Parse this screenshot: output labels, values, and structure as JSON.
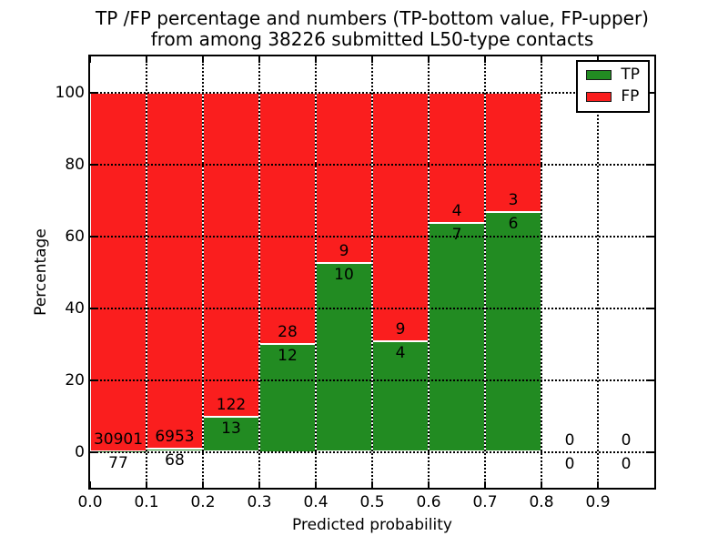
{
  "chart_data": {
    "type": "bar",
    "stacked": true,
    "normalized": "percent",
    "title_line1": "TP /FP percentage and numbers (TP-bottom value, FP-upper)",
    "title_line2": "from among 38226 submitted L50-type contacts",
    "total_submitted": 38226,
    "xlabel": "Predicted probability",
    "ylabel": "Percentage",
    "xlim": [
      0.0,
      1.0
    ],
    "ylim": [
      -10,
      110
    ],
    "xticks": [
      "0.0",
      "0.1",
      "0.2",
      "0.3",
      "0.4",
      "0.5",
      "0.6",
      "0.7",
      "0.8",
      "0.9"
    ],
    "xtick_values": [
      0.0,
      0.1,
      0.2,
      0.3,
      0.4,
      0.5,
      0.6,
      0.7,
      0.8,
      0.9
    ],
    "yticks": [
      0,
      20,
      40,
      60,
      80,
      100
    ],
    "grid": "dotted",
    "grid_color": "#000000",
    "colors": {
      "tp": "#228b22",
      "fp": "#fa1e1e"
    },
    "legend": {
      "position": "upper right",
      "entries": [
        {
          "label": "TP",
          "color": "#228b22"
        },
        {
          "label": "FP",
          "color": "#fa1e1e"
        }
      ]
    },
    "bins": [
      {
        "range": [
          0.0,
          0.1
        ],
        "tp": 77,
        "fp": 30901,
        "tp_percent": 0.25
      },
      {
        "range": [
          0.1,
          0.2
        ],
        "tp": 68,
        "fp": 6953,
        "tp_percent": 0.97
      },
      {
        "range": [
          0.2,
          0.3
        ],
        "tp": 13,
        "fp": 122,
        "tp_percent": 9.63
      },
      {
        "range": [
          0.3,
          0.4
        ],
        "tp": 12,
        "fp": 28,
        "tp_percent": 30.0
      },
      {
        "range": [
          0.4,
          0.5
        ],
        "tp": 10,
        "fp": 9,
        "tp_percent": 52.63
      },
      {
        "range": [
          0.5,
          0.6
        ],
        "tp": 4,
        "fp": 9,
        "tp_percent": 30.77
      },
      {
        "range": [
          0.6,
          0.7
        ],
        "tp": 7,
        "fp": 4,
        "tp_percent": 63.64
      },
      {
        "range": [
          0.7,
          0.8
        ],
        "tp": 6,
        "fp": 3,
        "tp_percent": 66.67
      },
      {
        "range": [
          0.8,
          0.9
        ],
        "tp": 0,
        "fp": 0,
        "tp_percent": null
      },
      {
        "range": [
          0.9,
          1.0
        ],
        "tp": 0,
        "fp": 0,
        "tp_percent": null
      }
    ]
  }
}
